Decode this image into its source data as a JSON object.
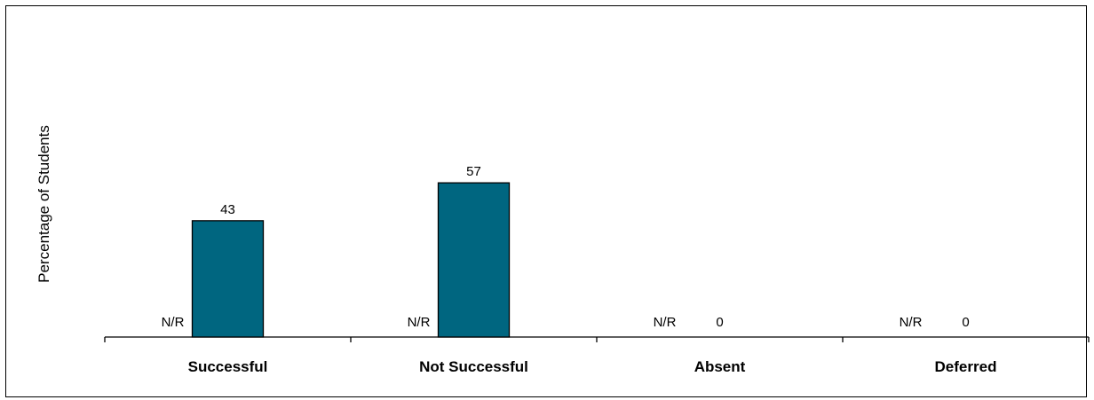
{
  "chart_data": {
    "type": "bar",
    "ylabel": "Percentage of Students",
    "xlabel": "",
    "categories": [
      "Successful",
      "Not Successful",
      "Absent",
      "Deferred"
    ],
    "series": [
      {
        "labels": [
          "N/R",
          "N/R",
          "N/R",
          "N/R"
        ]
      },
      {
        "values": [
          43,
          57,
          0,
          0
        ],
        "color": "#006680"
      }
    ],
    "grid": false,
    "legend": "none"
  }
}
